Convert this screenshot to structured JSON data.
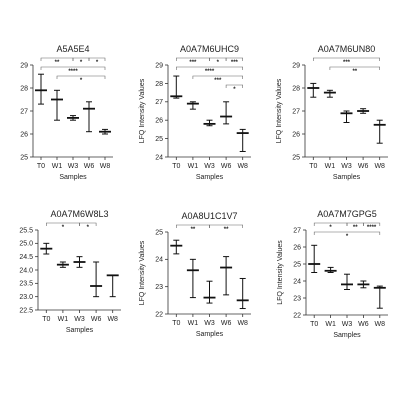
{
  "chart_data": [
    {
      "type": "box",
      "title": "A5A5E4",
      "xlabel": "Samples",
      "ylabel": "",
      "ylim": [
        25,
        29
      ],
      "yticks": [
        25,
        26,
        27,
        28,
        29
      ],
      "categories": [
        "T0",
        "W1",
        "W3",
        "W6",
        "W8"
      ],
      "boxes": [
        {
          "min": 27.3,
          "median": 27.9,
          "max": 28.6
        },
        {
          "min": 26.6,
          "median": 27.5,
          "max": 27.9
        },
        {
          "min": 26.6,
          "median": 26.7,
          "max": 26.8
        },
        {
          "min": 26.1,
          "median": 27.1,
          "max": 27.4
        },
        {
          "min": 26.0,
          "median": 26.1,
          "max": 26.2
        }
      ],
      "annotations": [
        {
          "from": "T0",
          "to": "W3",
          "label": "**",
          "level": 0
        },
        {
          "from": "W3",
          "to": "W6",
          "label": "*",
          "level": 0
        },
        {
          "from": "W6",
          "to": "W8",
          "label": "*",
          "level": 0
        },
        {
          "from": "T0",
          "to": "W8",
          "label": "****",
          "level": 1
        },
        {
          "from": "W1",
          "to": "W8",
          "label": "*",
          "level": 2
        }
      ]
    },
    {
      "type": "box",
      "title": "A0A7M6UHC9",
      "xlabel": "Samples",
      "ylabel": "LFQ Intensity Values",
      "ylim": [
        24,
        29
      ],
      "yticks": [
        24,
        25,
        26,
        27,
        28,
        29
      ],
      "categories": [
        "T0",
        "W1",
        "W3",
        "W6",
        "W8"
      ],
      "boxes": [
        {
          "min": 27.2,
          "median": 27.3,
          "max": 28.4
        },
        {
          "min": 26.6,
          "median": 26.9,
          "max": 27.0
        },
        {
          "min": 25.7,
          "median": 25.8,
          "max": 26.0
        },
        {
          "min": 25.8,
          "median": 26.2,
          "max": 27.0
        },
        {
          "min": 24.3,
          "median": 25.3,
          "max": 25.5
        }
      ],
      "annotations": [
        {
          "from": "T0",
          "to": "W3",
          "label": "***",
          "level": 0
        },
        {
          "from": "W3",
          "to": "W6",
          "label": "*",
          "level": 0
        },
        {
          "from": "W6",
          "to": "W8",
          "label": "***",
          "level": 0
        },
        {
          "from": "T0",
          "to": "W8",
          "label": "****",
          "level": 1
        },
        {
          "from": "W1",
          "to": "W8",
          "label": "***",
          "level": 2
        },
        {
          "from": "W6",
          "to": "W8",
          "label": "*",
          "level": 3
        }
      ]
    },
    {
      "type": "box",
      "title": "A0A7M6UN80",
      "xlabel": "Samples",
      "ylabel": "LFQ Intensity Values",
      "ylim": [
        25,
        29
      ],
      "yticks": [
        25,
        26,
        27,
        28,
        29
      ],
      "categories": [
        "T0",
        "W1",
        "W3",
        "W6",
        "W8"
      ],
      "boxes": [
        {
          "min": 27.6,
          "median": 28.0,
          "max": 28.2
        },
        {
          "min": 27.6,
          "median": 27.8,
          "max": 27.9
        },
        {
          "min": 26.5,
          "median": 26.9,
          "max": 27.0
        },
        {
          "min": 26.9,
          "median": 27.0,
          "max": 27.1
        },
        {
          "min": 25.6,
          "median": 26.4,
          "max": 26.6
        }
      ],
      "annotations": [
        {
          "from": "T0",
          "to": "W8",
          "label": "***",
          "level": 0
        },
        {
          "from": "W1",
          "to": "W8",
          "label": "**",
          "level": 1
        }
      ]
    },
    {
      "type": "box",
      "title": "A0A7M6W8L3",
      "xlabel": "Samples",
      "ylabel": "",
      "ylim": [
        22.5,
        25.5
      ],
      "yticks": [
        22.5,
        23.0,
        23.5,
        24.0,
        24.5,
        25.0,
        25.5
      ],
      "ytick_labels": [
        "22.5",
        "23.0",
        "23.5",
        "24.0",
        "24.5",
        "25.0",
        "25.5"
      ],
      "categories": [
        "T0",
        "W1",
        "W3",
        "W6",
        "W8"
      ],
      "boxes": [
        {
          "min": 24.6,
          "median": 24.8,
          "max": 25.0
        },
        {
          "min": 24.1,
          "median": 24.2,
          "max": 24.3
        },
        {
          "min": 24.1,
          "median": 24.3,
          "max": 24.5
        },
        {
          "min": 23.0,
          "median": 23.4,
          "max": 24.3
        },
        {
          "min": 23.0,
          "median": 23.8,
          "max": 23.8
        }
      ],
      "annotations": [
        {
          "from": "T0",
          "to": "W3",
          "label": "*",
          "level": 0
        },
        {
          "from": "W3",
          "to": "W6",
          "label": "*",
          "level": 0
        }
      ]
    },
    {
      "type": "box",
      "title": "A0A8U1C1V7",
      "xlabel": "Samples",
      "ylabel": "LFQ Intensity Values",
      "ylim": [
        22,
        25
      ],
      "yticks": [
        22,
        23,
        24,
        25
      ],
      "categories": [
        "T0",
        "W1",
        "W3",
        "W6",
        "W8"
      ],
      "boxes": [
        {
          "min": 24.2,
          "median": 24.5,
          "max": 24.7
        },
        {
          "min": 22.6,
          "median": 23.6,
          "max": 24.0
        },
        {
          "min": 22.4,
          "median": 22.6,
          "max": 23.2
        },
        {
          "min": 22.7,
          "median": 23.7,
          "max": 24.1
        },
        {
          "min": 22.2,
          "median": 22.5,
          "max": 23.3
        }
      ],
      "annotations": [
        {
          "from": "T0",
          "to": "W3",
          "label": "**",
          "level": 0
        },
        {
          "from": "W3",
          "to": "W8",
          "label": "**",
          "level": 0
        }
      ]
    },
    {
      "type": "box",
      "title": "A0A7M7GPG5",
      "xlabel": "Samples",
      "ylabel": "LFQ Intensity Values",
      "ylim": [
        22,
        27
      ],
      "yticks": [
        22,
        23,
        24,
        25,
        26,
        27
      ],
      "categories": [
        "T0",
        "W1",
        "W3",
        "W6",
        "W8"
      ],
      "boxes": [
        {
          "min": 24.5,
          "median": 25.0,
          "max": 26.1
        },
        {
          "min": 24.5,
          "median": 24.6,
          "max": 24.8
        },
        {
          "min": 23.5,
          "median": 23.8,
          "max": 24.4
        },
        {
          "min": 23.6,
          "median": 23.8,
          "max": 24.0
        },
        {
          "min": 22.4,
          "median": 23.6,
          "max": 23.7
        }
      ],
      "annotations": [
        {
          "from": "T0",
          "to": "W3",
          "label": "*",
          "level": 0
        },
        {
          "from": "W3",
          "to": "W6",
          "label": "**",
          "level": 0
        },
        {
          "from": "W6",
          "to": "W8",
          "label": "****",
          "level": 0
        },
        {
          "from": "T0",
          "to": "W8",
          "label": "*",
          "level": 1
        }
      ]
    }
  ]
}
